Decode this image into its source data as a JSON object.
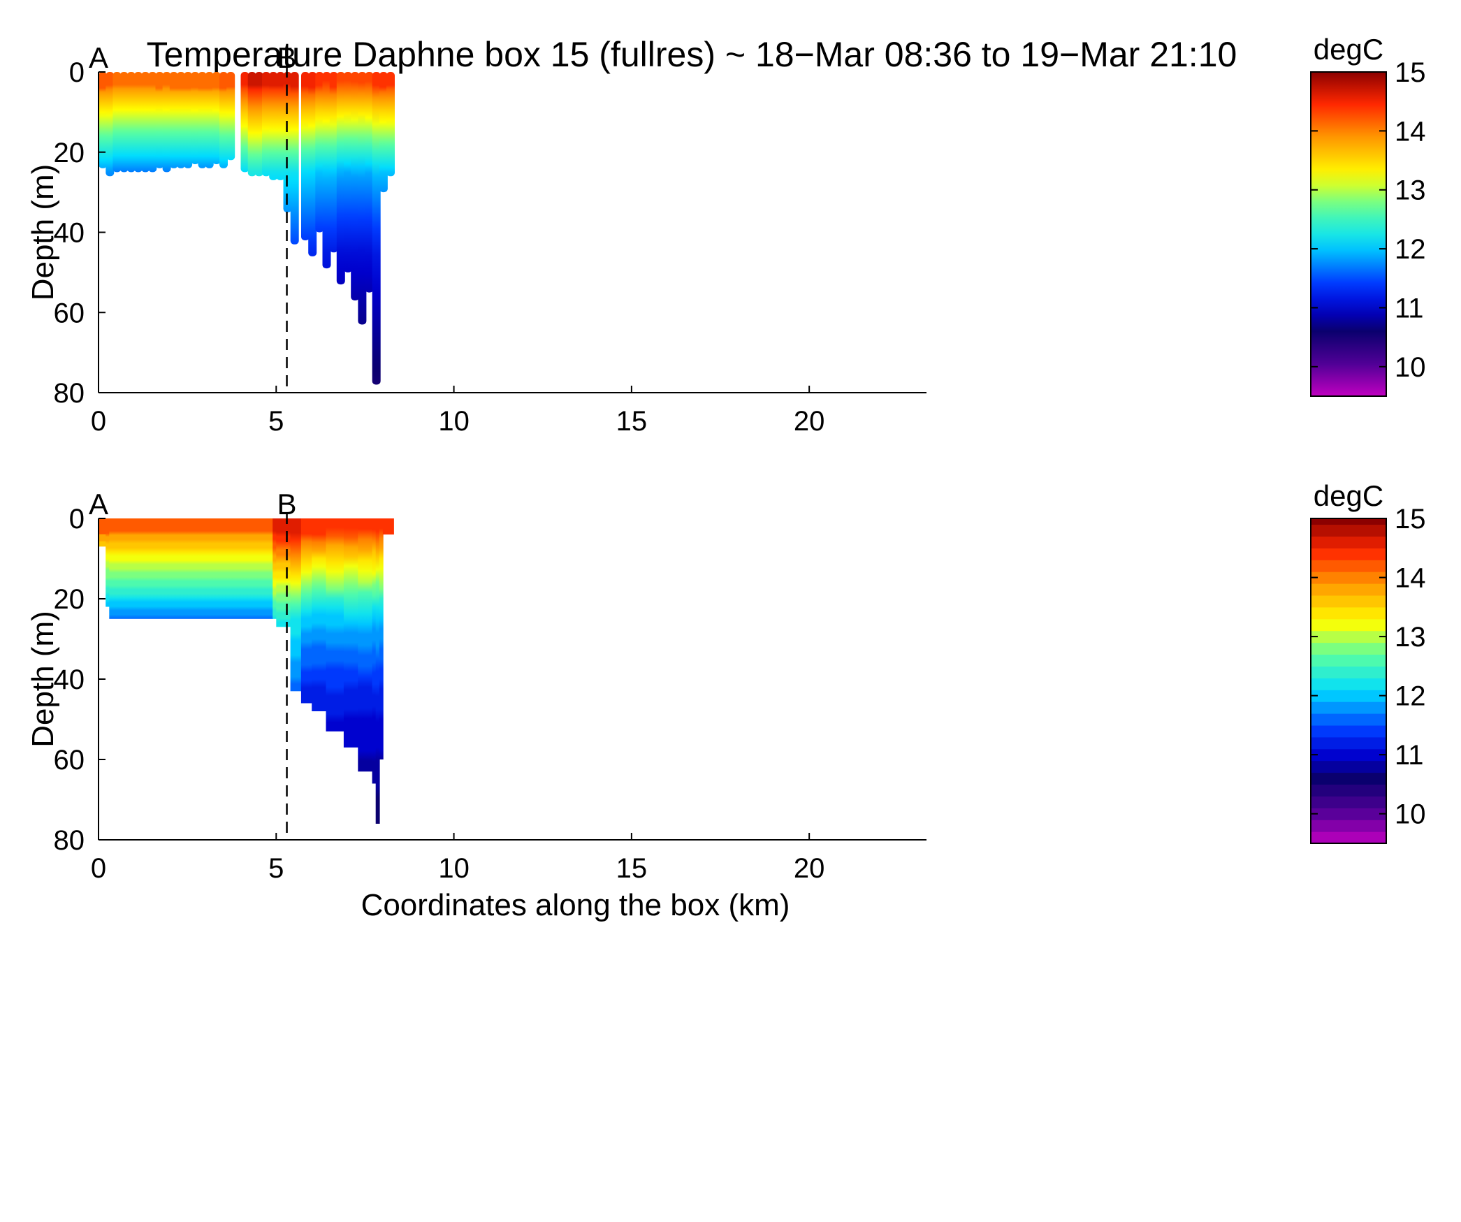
{
  "title": "Temperature Daphne box 15 (fullres) ~ 18−Mar 08:36 to 19−Mar 21:10",
  "chart_data": [
    {
      "type": "heatmap",
      "panel": "top",
      "style": "scatter-profiles",
      "xlabel": "",
      "ylabel": "Depth (m)",
      "xlim": [
        0,
        23.3
      ],
      "ylim": [
        0,
        80
      ],
      "y_reversed": true,
      "x_ticks": [
        0,
        5,
        10,
        15,
        20
      ],
      "y_ticks": [
        0,
        20,
        40,
        60,
        80
      ],
      "markers": [
        {
          "label": "A",
          "x": 0.0
        },
        {
          "label": "B",
          "x": 5.3
        }
      ],
      "colorbar": {
        "unit": "degC",
        "min": 9.5,
        "max": 15,
        "ticks": [
          10,
          11,
          12,
          13,
          14,
          15
        ]
      },
      "profiles": [
        {
          "x": 0.1,
          "max_depth": 24,
          "surface_temp": 14.0
        },
        {
          "x": 0.3,
          "max_depth": 26,
          "surface_temp": 14.0
        },
        {
          "x": 0.5,
          "max_depth": 25,
          "surface_temp": 13.9
        },
        {
          "x": 0.7,
          "max_depth": 25,
          "surface_temp": 13.9
        },
        {
          "x": 0.9,
          "max_depth": 25,
          "surface_temp": 13.9
        },
        {
          "x": 1.1,
          "max_depth": 25,
          "surface_temp": 13.9
        },
        {
          "x": 1.3,
          "max_depth": 25,
          "surface_temp": 13.9
        },
        {
          "x": 1.5,
          "max_depth": 25,
          "surface_temp": 13.9
        },
        {
          "x": 1.7,
          "max_depth": 24,
          "surface_temp": 13.9
        },
        {
          "x": 1.9,
          "max_depth": 25,
          "surface_temp": 13.9
        },
        {
          "x": 2.1,
          "max_depth": 24,
          "surface_temp": 13.9
        },
        {
          "x": 2.3,
          "max_depth": 24,
          "surface_temp": 13.9
        },
        {
          "x": 2.5,
          "max_depth": 24,
          "surface_temp": 13.9
        },
        {
          "x": 2.7,
          "max_depth": 23,
          "surface_temp": 13.9
        },
        {
          "x": 2.9,
          "max_depth": 24,
          "surface_temp": 13.9
        },
        {
          "x": 3.1,
          "max_depth": 24,
          "surface_temp": 13.9
        },
        {
          "x": 3.3,
          "max_depth": 23,
          "surface_temp": 13.9
        },
        {
          "x": 3.5,
          "max_depth": 24,
          "surface_temp": 14.0
        },
        {
          "x": 3.7,
          "max_depth": 22,
          "surface_temp": 14.0
        },
        {
          "x": 4.1,
          "max_depth": 25,
          "surface_temp": 14.3
        },
        {
          "x": 4.3,
          "max_depth": 26,
          "surface_temp": 14.5
        },
        {
          "x": 4.5,
          "max_depth": 26,
          "surface_temp": 14.5
        },
        {
          "x": 4.7,
          "max_depth": 26,
          "surface_temp": 14.4
        },
        {
          "x": 4.9,
          "max_depth": 27,
          "surface_temp": 14.4
        },
        {
          "x": 5.1,
          "max_depth": 27,
          "surface_temp": 14.4
        },
        {
          "x": 5.3,
          "max_depth": 35,
          "surface_temp": 14.4
        },
        {
          "x": 5.5,
          "max_depth": 43,
          "surface_temp": 14.4
        },
        {
          "x": 5.8,
          "max_depth": 42,
          "surface_temp": 14.3
        },
        {
          "x": 6.0,
          "max_depth": 46,
          "surface_temp": 14.3
        },
        {
          "x": 6.2,
          "max_depth": 40,
          "surface_temp": 14.2
        },
        {
          "x": 6.4,
          "max_depth": 49,
          "surface_temp": 14.2
        },
        {
          "x": 6.6,
          "max_depth": 45,
          "surface_temp": 14.2
        },
        {
          "x": 6.8,
          "max_depth": 53,
          "surface_temp": 14.1
        },
        {
          "x": 7.0,
          "max_depth": 50,
          "surface_temp": 14.1
        },
        {
          "x": 7.2,
          "max_depth": 57,
          "surface_temp": 14.1
        },
        {
          "x": 7.4,
          "max_depth": 63,
          "surface_temp": 14.1
        },
        {
          "x": 7.6,
          "max_depth": 55,
          "surface_temp": 14.1
        },
        {
          "x": 7.8,
          "max_depth": 78,
          "surface_temp": 14.2
        },
        {
          "x": 8.0,
          "max_depth": 30,
          "surface_temp": 14.2
        },
        {
          "x": 8.2,
          "max_depth": 26,
          "surface_temp": 14.2
        }
      ]
    },
    {
      "type": "heatmap",
      "panel": "bottom",
      "style": "filled-contour",
      "xlabel": "Coordinates along the box (km)",
      "ylabel": "Depth (m)",
      "xlim": [
        0,
        23.3
      ],
      "ylim": [
        0,
        80
      ],
      "y_reversed": true,
      "x_ticks": [
        0,
        5,
        10,
        15,
        20
      ],
      "y_ticks": [
        0,
        20,
        40,
        60,
        80
      ],
      "markers": [
        {
          "label": "A",
          "x": 0.0
        },
        {
          "label": "B",
          "x": 5.3
        }
      ],
      "colorbar": {
        "unit": "degC",
        "min": 9.5,
        "max": 15,
        "levels_step": 0.2,
        "ticks": [
          10,
          11,
          12,
          13,
          14,
          15
        ]
      },
      "columns": [
        {
          "x": 0.0,
          "bottom": 7
        },
        {
          "x": 0.2,
          "bottom": 22
        },
        {
          "x": 0.3,
          "bottom": 25
        },
        {
          "x": 4.9,
          "bottom": 25
        },
        {
          "x": 5.0,
          "bottom": 27
        },
        {
          "x": 5.3,
          "bottom": 27
        },
        {
          "x": 5.4,
          "bottom": 43
        },
        {
          "x": 5.7,
          "bottom": 46
        },
        {
          "x": 6.0,
          "bottom": 48
        },
        {
          "x": 6.4,
          "bottom": 53
        },
        {
          "x": 6.9,
          "bottom": 57
        },
        {
          "x": 7.3,
          "bottom": 63
        },
        {
          "x": 7.7,
          "bottom": 66
        },
        {
          "x": 7.8,
          "bottom": 76
        },
        {
          "x": 7.9,
          "bottom": 60
        },
        {
          "x": 8.0,
          "bottom": 4
        },
        {
          "x": 8.2,
          "bottom": 4
        },
        {
          "x": 8.3,
          "bottom": 26
        }
      ]
    }
  ]
}
